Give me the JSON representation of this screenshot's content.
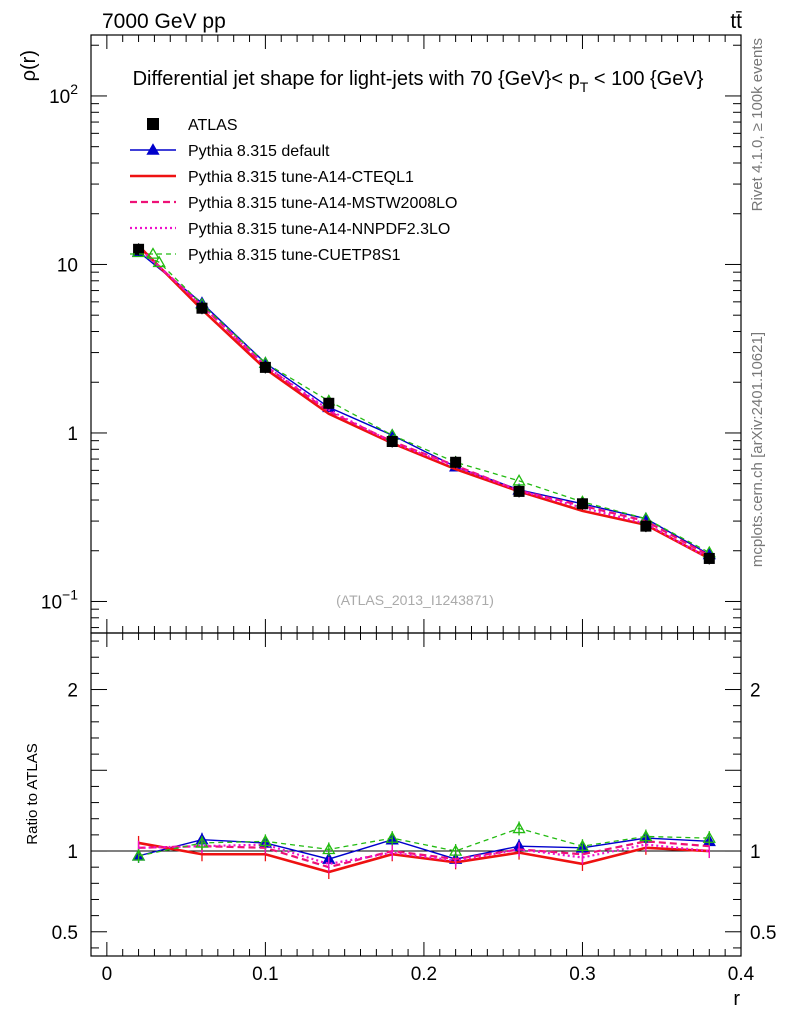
{
  "header": {
    "energy_label": "7000 GeV pp",
    "process_label": "tt̄"
  },
  "side_labels": {
    "rivet": "Rivet 4.1.0, ≥ 100k events",
    "mcplots": "mcplots.cern.ch [arXiv:2401.10621]"
  },
  "chart_data": [
    {
      "type": "line",
      "title": "Differential jet shape for light-jets with 70 {GeV}< p_T < 100 {GeV}",
      "title_main": "Differential jet shape for light-jets with 70 {GeV}< p",
      "title_sub": "T",
      "title_tail": " < 100 {GeV}",
      "ylabel": "ρ(r)",
      "xlabel": "r",
      "xlim": [
        -0.01,
        0.4
      ],
      "ylim": [
        0.065,
        230
      ],
      "yscale": "log",
      "x_ticks": [
        "0",
        "0.1",
        "0.2",
        "0.3",
        "0.4"
      ],
      "y_ticks": [
        {
          "base": "10",
          "exp": "2",
          "value": 100
        },
        {
          "base": "10",
          "exp": "",
          "value": 10
        },
        {
          "base": "1",
          "exp": "",
          "value": 1
        },
        {
          "base": "10",
          "exp": "−1",
          "value": 0.1
        }
      ],
      "watermark": "(ATLAS_2013_I1243871)",
      "legend_position": "top-left",
      "x": [
        0.02,
        0.06,
        0.1,
        0.14,
        0.18,
        0.22,
        0.26,
        0.3,
        0.34,
        0.38
      ],
      "series": [
        {
          "name": "ATLAS",
          "style": "data",
          "color": "#000000",
          "values": [
            12.3,
            5.5,
            2.45,
            1.5,
            0.89,
            0.67,
            0.45,
            0.38,
            0.28,
            0.18
          ]
        },
        {
          "name": "Pythia 8.315 default",
          "style": "solid-triangle",
          "color": "#0000cc",
          "values": [
            11.9,
            5.9,
            2.6,
            1.42,
            0.97,
            0.63,
            0.46,
            0.38,
            0.31,
            0.19
          ]
        },
        {
          "name": "Pythia 8.315 tune-A14-CTEQL1",
          "style": "solid-thick",
          "color": "#ee1111",
          "values": [
            12.9,
            5.4,
            2.4,
            1.3,
            0.87,
            0.61,
            0.45,
            0.345,
            0.285,
            0.18
          ]
        },
        {
          "name": "Pythia 8.315 tune-A14-MSTW2008LO",
          "style": "dashed",
          "color": "#ee1177",
          "values": [
            12.5,
            5.7,
            2.5,
            1.34,
            0.89,
            0.64,
            0.455,
            0.37,
            0.3,
            0.187
          ]
        },
        {
          "name": "Pythia 8.315 tune-A14-NNPDF2.3LO",
          "style": "dotted",
          "color": "#ee11cc",
          "values": [
            12.6,
            5.7,
            2.5,
            1.37,
            0.88,
            0.63,
            0.455,
            0.36,
            0.29,
            0.18
          ]
        },
        {
          "name": "Pythia 8.315 tune-CUETP8S1",
          "style": "dashed-open-triangle",
          "color": "#22bb11",
          "x": [
            0.02,
            0.033,
            0.06,
            0.1,
            0.14,
            0.18,
            0.22,
            0.26,
            0.3,
            0.34,
            0.38
          ],
          "values": [
            11.8,
            10.3,
            5.8,
            2.6,
            1.55,
            0.97,
            0.67,
            0.52,
            0.39,
            0.31,
            0.195
          ]
        }
      ]
    },
    {
      "type": "line",
      "title": "",
      "ylabel": "Ratio to ATLAS",
      "xlabel": "r",
      "xlim": [
        -0.01,
        0.4
      ],
      "ylim": [
        0.35,
        2.35
      ],
      "y_ticks": [
        "0.5",
        "1",
        "2"
      ],
      "reference_line": 1,
      "x": [
        0.02,
        0.06,
        0.1,
        0.14,
        0.18,
        0.22,
        0.26,
        0.3,
        0.34,
        0.38
      ],
      "series": [
        {
          "name": "Pythia 8.315 default",
          "style": "solid-triangle",
          "color": "#0000cc",
          "values": [
            0.97,
            1.07,
            1.05,
            0.95,
            1.07,
            0.95,
            1.03,
            1.02,
            1.08,
            1.06
          ]
        },
        {
          "name": "Pythia 8.315 tune-A14-CTEQL1",
          "style": "solid-thick",
          "color": "#ee1111",
          "values": [
            1.05,
            0.98,
            0.98,
            0.87,
            0.98,
            0.93,
            0.99,
            0.92,
            1.02,
            1.0
          ]
        },
        {
          "name": "Pythia 8.315 tune-A14-MSTW2008LO",
          "style": "dashed",
          "color": "#ee1177",
          "values": [
            1.02,
            1.03,
            1.02,
            0.9,
            1.0,
            0.95,
            1.01,
            0.98,
            1.06,
            1.03
          ]
        },
        {
          "name": "Pythia 8.315 tune-A14-NNPDF2.3LO",
          "style": "dotted",
          "color": "#ee11cc",
          "values": [
            1.02,
            1.03,
            1.04,
            0.92,
            0.99,
            0.94,
            1.01,
            0.96,
            1.04,
            1.0
          ]
        },
        {
          "name": "Pythia 8.315 tune-CUETP8S1",
          "style": "dashed-open-triangle",
          "color": "#22bb11",
          "values": [
            0.97,
            1.05,
            1.06,
            1.01,
            1.08,
            1.0,
            1.14,
            1.03,
            1.09,
            1.08
          ]
        }
      ]
    }
  ]
}
